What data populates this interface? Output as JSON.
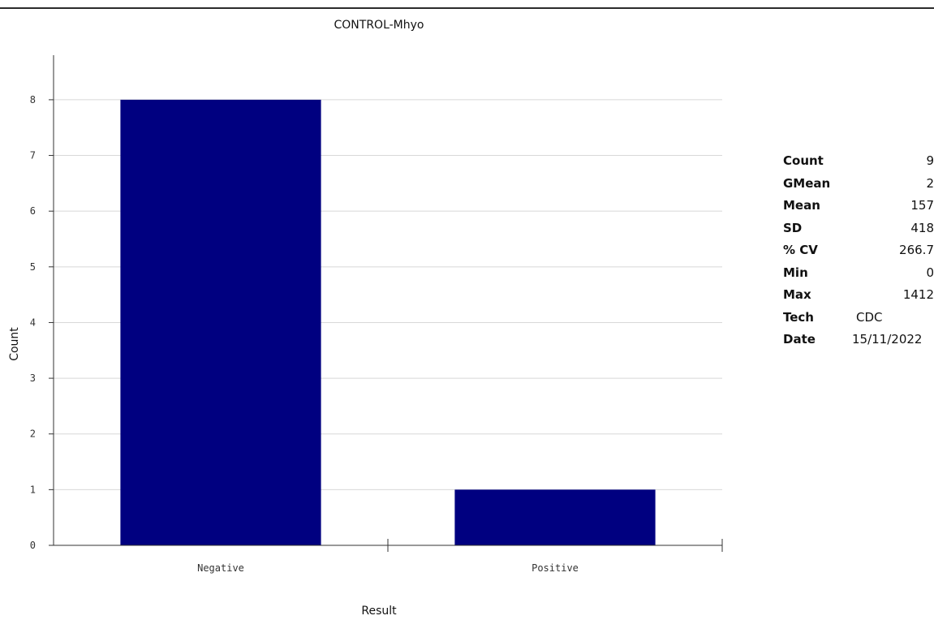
{
  "chart_data": {
    "type": "bar",
    "title": "CONTROL-Mhyo",
    "xlabel": "Result",
    "ylabel": "Count",
    "categories": [
      "Negative",
      "Positive"
    ],
    "values": [
      8,
      1
    ],
    "ylim": [
      0,
      8.8
    ],
    "yticks": [
      0,
      1,
      2,
      3,
      4,
      5,
      6,
      7,
      8
    ],
    "grid": true,
    "legend": "none",
    "bar_color": "#000080",
    "grid_color": "#d8d8d8"
  },
  "stats": [
    {
      "label": "Count",
      "value": "9"
    },
    {
      "label": "GMean",
      "value": "2"
    },
    {
      "label": "Mean",
      "value": "157"
    },
    {
      "label": "SD",
      "value": "418"
    },
    {
      "label": "% CV",
      "value": "266.7"
    },
    {
      "label": "Min",
      "value": "0"
    },
    {
      "label": "Max",
      "value": "1412"
    },
    {
      "label": "Tech",
      "value": "CDC"
    },
    {
      "label": "Date",
      "value": "15/11/2022"
    }
  ]
}
